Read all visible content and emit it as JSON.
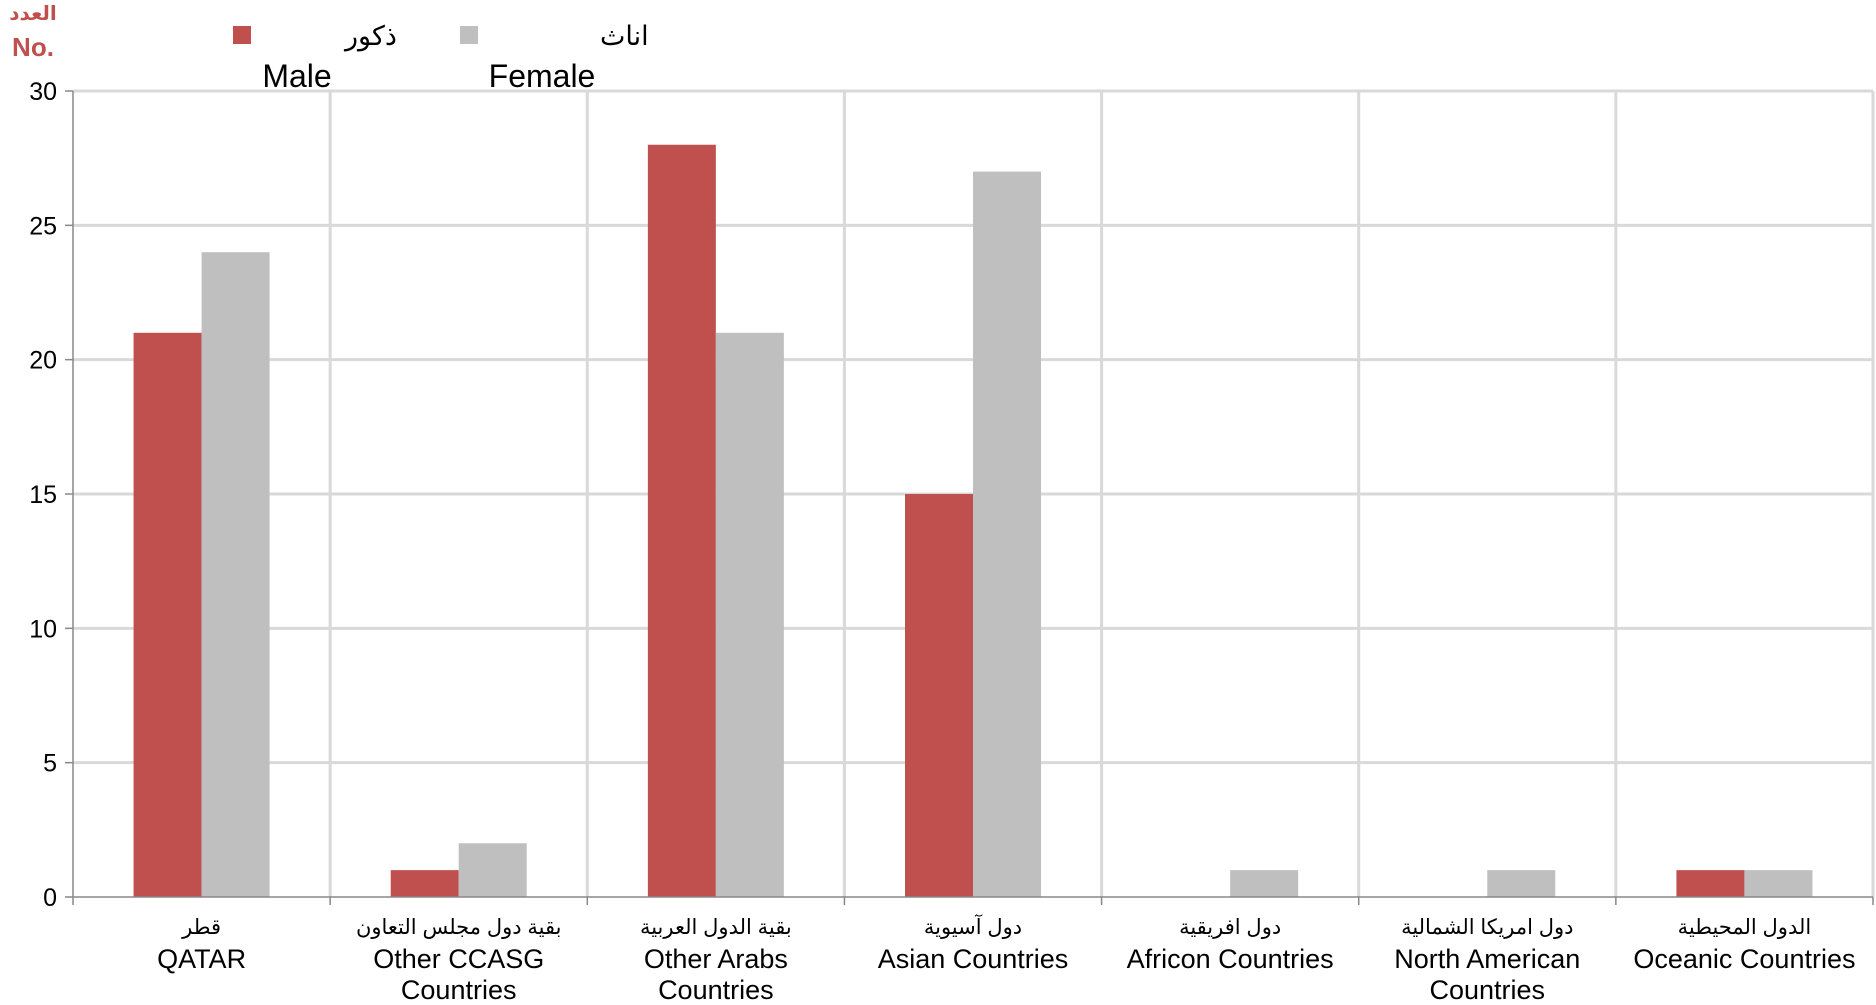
{
  "chart_data": {
    "type": "bar",
    "ylabel_ar": "العدد",
    "ylabel_en": "No.",
    "ylim": [
      0,
      30
    ],
    "yticks": [
      0,
      5,
      10,
      15,
      20,
      25,
      30
    ],
    "grid": true,
    "legend_position": "top-left",
    "categories": [
      {
        "ar": "قطر",
        "en": [
          "QATAR"
        ]
      },
      {
        "ar": "بقية دول مجلس التعاون",
        "en": [
          "Other CCASG",
          "Countries"
        ]
      },
      {
        "ar": "بقية الدول العربية",
        "en": [
          "Other Arabs",
          "Countries"
        ]
      },
      {
        "ar": "دول آسيوية",
        "en": [
          "Asian Countries"
        ]
      },
      {
        "ar": "دول افريقية",
        "en": [
          "Africon Countries"
        ]
      },
      {
        "ar": "دول امريكا الشمالية",
        "en": [
          "North American",
          "Countries"
        ]
      },
      {
        "ar": "الدول المحيطية",
        "en": [
          "Oceanic Countries"
        ]
      }
    ],
    "series": [
      {
        "name_ar": "ذكور",
        "name_en": "Male",
        "color": "#c0504d",
        "values": [
          21,
          1,
          28,
          15,
          0,
          0,
          1
        ]
      },
      {
        "name_ar": "اناث",
        "name_en": "Female",
        "color": "#bfbfbf",
        "values": [
          24,
          2,
          21,
          27,
          1,
          1,
          1
        ]
      }
    ]
  }
}
